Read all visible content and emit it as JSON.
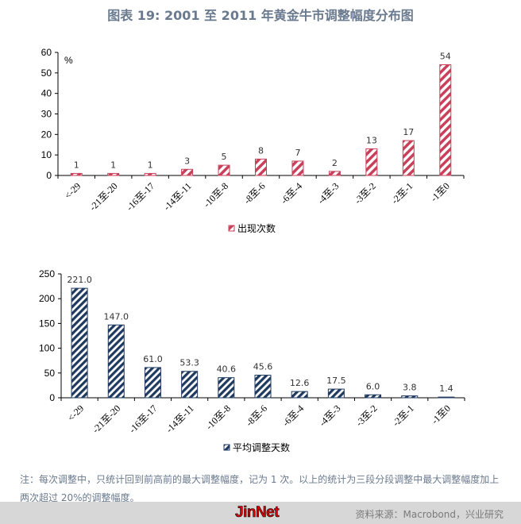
{
  "title": "图表 19: 2001 至 2011 年黄金牛市调整幅度分布图",
  "chart_data": [
    {
      "type": "bar",
      "categories": [
        "<-29",
        "-21至-20",
        "-16至-17",
        "-14至-11",
        "-10至-8",
        "-8至-6",
        "-6至-4",
        "-4至-3",
        "-3至-2",
        "-2至-1",
        "-1至0"
      ],
      "series": [
        {
          "name": "出现次数",
          "values": [
            1,
            1,
            1,
            3,
            5,
            8,
            7,
            2,
            13,
            17,
            54
          ],
          "color": "#c8405a",
          "pattern": "diagonal-stripes"
        }
      ],
      "data_labels": [
        "1",
        "1",
        "1",
        "3",
        "5",
        "8",
        "7",
        "2",
        "13",
        "17",
        "54"
      ],
      "ylim": [
        0,
        60
      ],
      "yticks": [
        0,
        10,
        20,
        30,
        40,
        50,
        60
      ],
      "unit_label": "%",
      "legend": "bottom",
      "grid": false
    },
    {
      "type": "bar",
      "categories": [
        "<-29",
        "-21至-20",
        "-16至-17",
        "-14至-11",
        "-10至-8",
        "-8至-6",
        "-6至-4",
        "-4至-3",
        "-3至-2",
        "-2至-1",
        "-1至0"
      ],
      "series": [
        {
          "name": "平均调整天数",
          "values": [
            221.0,
            147.0,
            61.0,
            53.3,
            40.6,
            45.6,
            12.6,
            17.5,
            6.0,
            3.8,
            1.4
          ],
          "color": "#1f3a5f",
          "pattern": "diagonal-stripes"
        }
      ],
      "data_labels": [
        "221.0",
        "147.0",
        "61.0",
        "53.3",
        "40.6",
        "45.6",
        "12.6",
        "17.5",
        "6.0",
        "3.8",
        "1.4"
      ],
      "ylim": [
        0,
        250
      ],
      "yticks": [
        0,
        50,
        100,
        150,
        200,
        250
      ],
      "legend": "bottom",
      "grid": false
    }
  ],
  "note": "注：每次调整中，只统计回到前高前的最大调整幅度，记为 1 次。以上的统计为三段分段调整中最大调整幅度加上两次超过 20%的调整幅度。",
  "footer": {
    "logo": "JinNet",
    "source": "资料来源：Macrobond，兴业研究"
  }
}
